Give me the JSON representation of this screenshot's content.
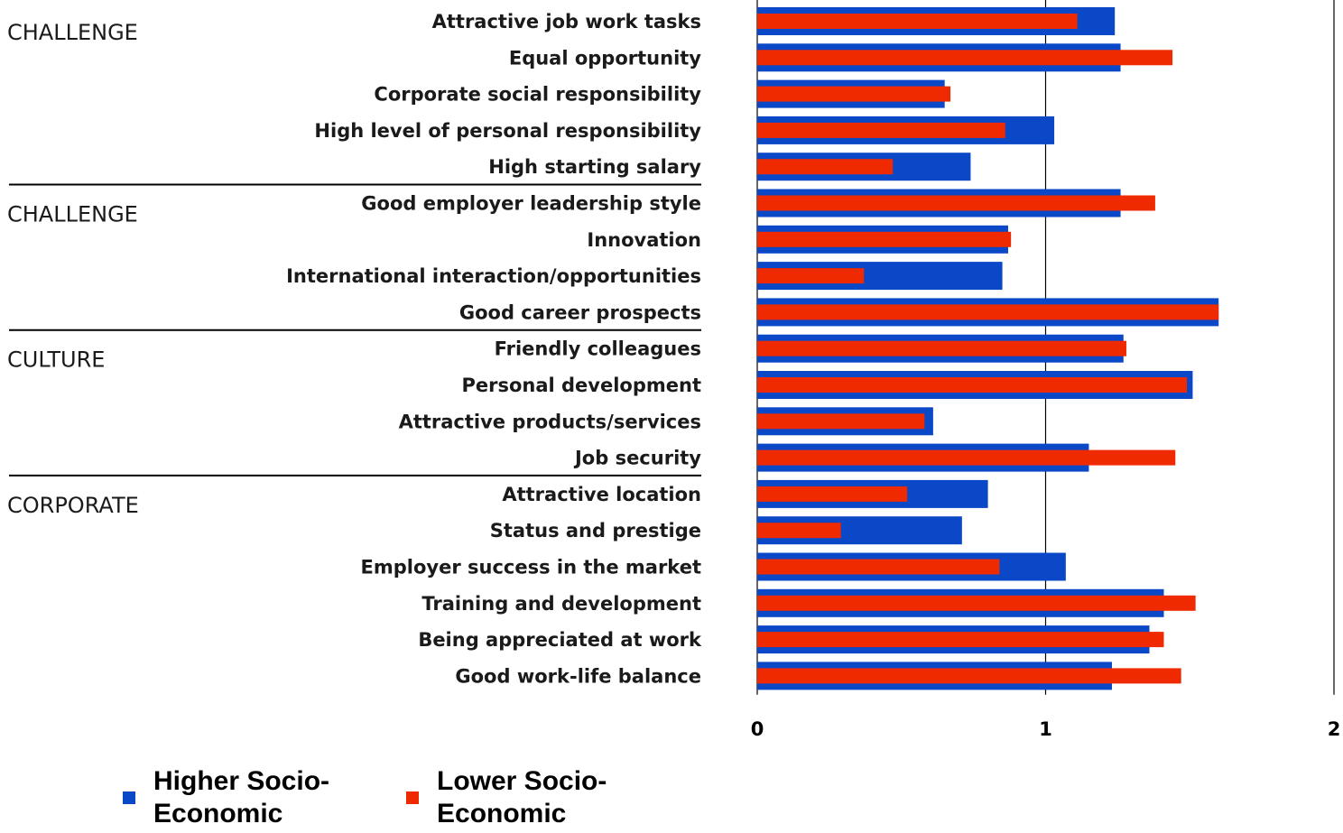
{
  "chart_data": {
    "type": "bar",
    "orientation": "horizontal",
    "title": "",
    "xlabel": "",
    "ylabel": "",
    "xlim": [
      0,
      2
    ],
    "x_ticks": [
      "0",
      "1",
      "2"
    ],
    "grid": "vertical lines at each tick",
    "legend_position": "bottom-left",
    "groups": [
      {
        "label": "CHALLENGE",
        "start": 0,
        "end": 4
      },
      {
        "label": "CHALLENGE",
        "start": 5,
        "end": 8
      },
      {
        "label": "CULTURE",
        "start": 9,
        "end": 12
      },
      {
        "label": "CORPORATE",
        "start": 13,
        "end": 18
      }
    ],
    "categories": [
      "Attractive job work tasks",
      "Equal opportunity",
      "Corporate social responsibility",
      "High level of personal responsibility",
      "High starting salary",
      "Good employer leadership style",
      "Innovation",
      "International interaction/opportunities",
      "Good career prospects",
      "Friendly colleagues",
      "Personal development",
      "Attractive products/services",
      "Job security",
      "Attractive location",
      "Status and prestige",
      "Employer success in the market",
      "Training and development",
      "Being appreciated at work",
      "Good work-life balance"
    ],
    "series": [
      {
        "name": "Higher Socio-Economic",
        "color": "#0a48c8",
        "values": [
          1.24,
          1.26,
          0.65,
          1.03,
          0.74,
          1.26,
          0.87,
          0.85,
          1.6,
          1.27,
          1.51,
          0.61,
          1.15,
          0.8,
          0.71,
          1.07,
          1.41,
          1.36,
          1.23
        ]
      },
      {
        "name": "Lower Socio-Economic",
        "color": "#f02a00",
        "values": [
          1.11,
          1.44,
          0.67,
          0.86,
          0.47,
          1.38,
          0.88,
          0.37,
          1.6,
          1.28,
          1.49,
          0.58,
          1.45,
          0.52,
          0.29,
          0.84,
          1.52,
          1.41,
          1.47
        ]
      }
    ]
  }
}
